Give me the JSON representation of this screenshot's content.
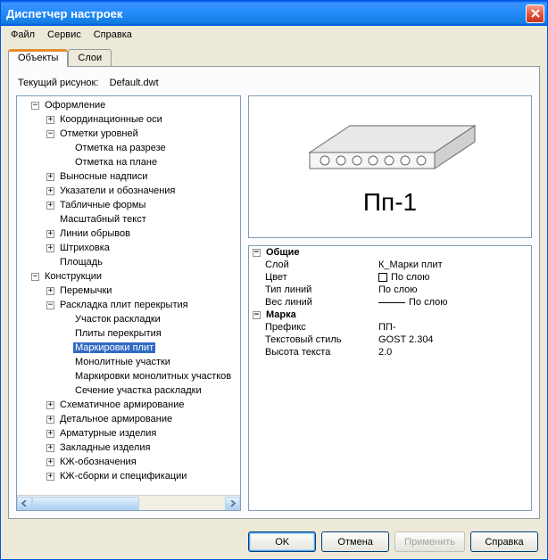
{
  "window": {
    "title": "Диспетчер настроек"
  },
  "menu": {
    "file": "Файл",
    "service": "Сервис",
    "help": "Справка"
  },
  "tabs": {
    "objects": "Объекты",
    "layers": "Слои"
  },
  "current_drawing_label": "Текущий рисунок:",
  "current_drawing_value": "Default.dwt",
  "tree": [
    {
      "level": 0,
      "expand": "-",
      "label": "Оформление"
    },
    {
      "level": 1,
      "expand": "+",
      "label": "Координационные оси"
    },
    {
      "level": 1,
      "expand": "-",
      "label": "Отметки уровней"
    },
    {
      "level": 2,
      "expand": "",
      "label": "Отметка на разрезе"
    },
    {
      "level": 2,
      "expand": "",
      "label": "Отметка на плане"
    },
    {
      "level": 1,
      "expand": "+",
      "label": "Выносные надписи"
    },
    {
      "level": 1,
      "expand": "+",
      "label": "Указатели и обозначения"
    },
    {
      "level": 1,
      "expand": "+",
      "label": "Табличные формы"
    },
    {
      "level": 1,
      "expand": "",
      "label": "Масштабный текст"
    },
    {
      "level": 1,
      "expand": "+",
      "label": "Линии обрывов"
    },
    {
      "level": 1,
      "expand": "+",
      "label": "Штриховка"
    },
    {
      "level": 1,
      "expand": "",
      "label": "Площадь"
    },
    {
      "level": 0,
      "expand": "-",
      "label": "Конструкции"
    },
    {
      "level": 1,
      "expand": "+",
      "label": "Перемычки"
    },
    {
      "level": 1,
      "expand": "-",
      "label": "Раскладка плит перекрытия"
    },
    {
      "level": 2,
      "expand": "",
      "label": "Участок раскладки"
    },
    {
      "level": 2,
      "expand": "",
      "label": "Плиты перекрытия"
    },
    {
      "level": 2,
      "expand": "",
      "label": "Маркировки плит",
      "selected": true
    },
    {
      "level": 2,
      "expand": "",
      "label": "Монолитные участки"
    },
    {
      "level": 2,
      "expand": "",
      "label": "Маркировки монолитных участков"
    },
    {
      "level": 2,
      "expand": "",
      "label": "Сечение участка раскладки"
    },
    {
      "level": 1,
      "expand": "+",
      "label": "Схематичное армирование"
    },
    {
      "level": 1,
      "expand": "+",
      "label": "Детальное армирование"
    },
    {
      "level": 1,
      "expand": "+",
      "label": "Арматурные изделия"
    },
    {
      "level": 1,
      "expand": "+",
      "label": "Закладные изделия"
    },
    {
      "level": 1,
      "expand": "+",
      "label": "КЖ-обозначения"
    },
    {
      "level": 1,
      "expand": "+",
      "label": "КЖ-сборки и спецификации"
    }
  ],
  "preview_label": "Пп-1",
  "props": {
    "group1": "Общие",
    "layer_name": "Слой",
    "layer_value": "К_Марки плит",
    "color_name": "Цвет",
    "color_value": "По слою",
    "ltype_name": "Тип линий",
    "ltype_value": "По слою",
    "lweight_name": "Вес линий",
    "lweight_value": "По слою",
    "group2": "Марка",
    "prefix_name": "Префикс",
    "prefix_value": "ПП-",
    "style_name": "Текстовый стиль",
    "style_value": "GOST 2.304",
    "height_name": "Высота текста",
    "height_value": "2.0"
  },
  "buttons": {
    "ok": "OK",
    "cancel": "Отмена",
    "apply": "Применить",
    "help": "Справка"
  },
  "colors": {
    "window_bg": "#ece9d8",
    "panel_border": "#7f9db9",
    "selection": "#316ac5"
  }
}
